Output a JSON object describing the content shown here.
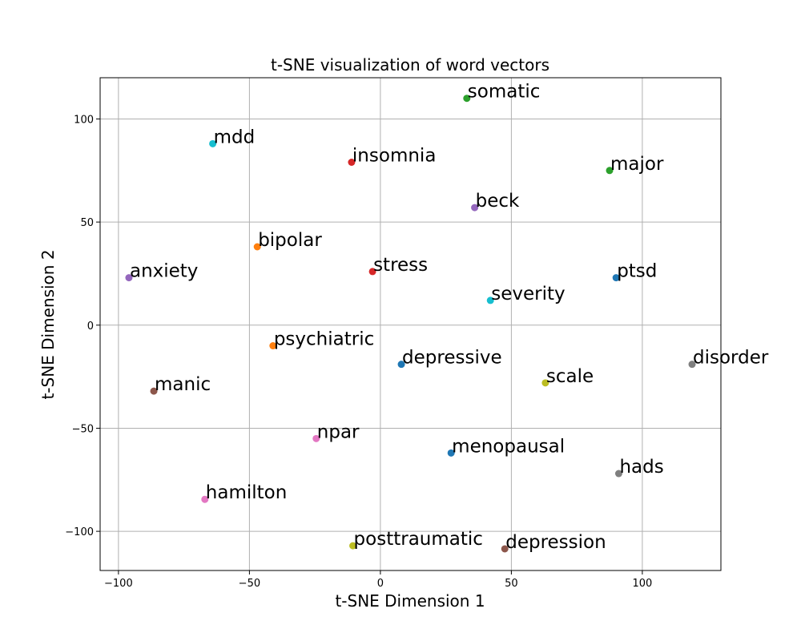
{
  "chart_data": {
    "type": "scatter",
    "title": "t-SNE visualization of word vectors",
    "xlabel": "t-SNE Dimension 1",
    "ylabel": "t-SNE Dimension 2",
    "xlim": [
      -107,
      130
    ],
    "ylim": [
      -119,
      120
    ],
    "xticks": [
      -100,
      -50,
      0,
      50,
      100
    ],
    "yticks": [
      -100,
      -50,
      0,
      50,
      100
    ],
    "tick_labels_x": [
      "−100",
      "−50",
      "0",
      "50",
      "100"
    ],
    "tick_labels_y": [
      "−100",
      "−50",
      "0",
      "50",
      "100"
    ],
    "grid": true,
    "points": [
      {
        "label": "somatic",
        "x": 33,
        "y": 110,
        "color": "#2ca02c"
      },
      {
        "label": "mdd",
        "x": -64,
        "y": 88,
        "color": "#17becf"
      },
      {
        "label": "insomnia",
        "x": -11,
        "y": 79,
        "color": "#d62728"
      },
      {
        "label": "major",
        "x": 87.5,
        "y": 75,
        "color": "#2ca02c"
      },
      {
        "label": "beck",
        "x": 36,
        "y": 57,
        "color": "#9467bd"
      },
      {
        "label": "bipolar",
        "x": -47,
        "y": 38,
        "color": "#ff7f0e"
      },
      {
        "label": "stress",
        "x": -3,
        "y": 26,
        "color": "#d62728"
      },
      {
        "label": "anxiety",
        "x": -96,
        "y": 23,
        "color": "#9467bd"
      },
      {
        "label": "ptsd",
        "x": 90,
        "y": 23,
        "color": "#1f77b4"
      },
      {
        "label": "severity",
        "x": 42,
        "y": 12,
        "color": "#17becf"
      },
      {
        "label": "psychiatric",
        "x": -41,
        "y": -10,
        "color": "#ff7f0e"
      },
      {
        "label": "depressive",
        "x": 8,
        "y": -19,
        "color": "#1f77b4"
      },
      {
        "label": "disorder",
        "x": 119,
        "y": -19,
        "color": "#7f7f7f"
      },
      {
        "label": "scale",
        "x": 63,
        "y": -28,
        "color": "#bcbd22"
      },
      {
        "label": "manic",
        "x": -86.5,
        "y": -32,
        "color": "#8c564b"
      },
      {
        "label": "npar",
        "x": -24.5,
        "y": -55,
        "color": "#e377c2"
      },
      {
        "label": "menopausal",
        "x": 27,
        "y": -62,
        "color": "#1f77b4"
      },
      {
        "label": "hads",
        "x": 91,
        "y": -72,
        "color": "#7f7f7f"
      },
      {
        "label": "hamilton",
        "x": -67,
        "y": -84.5,
        "color": "#e377c2"
      },
      {
        "label": "posttraumatic",
        "x": -10.5,
        "y": -107,
        "color": "#bcbd22"
      },
      {
        "label": "depression",
        "x": 47.5,
        "y": -108.5,
        "color": "#8c564b"
      }
    ]
  }
}
